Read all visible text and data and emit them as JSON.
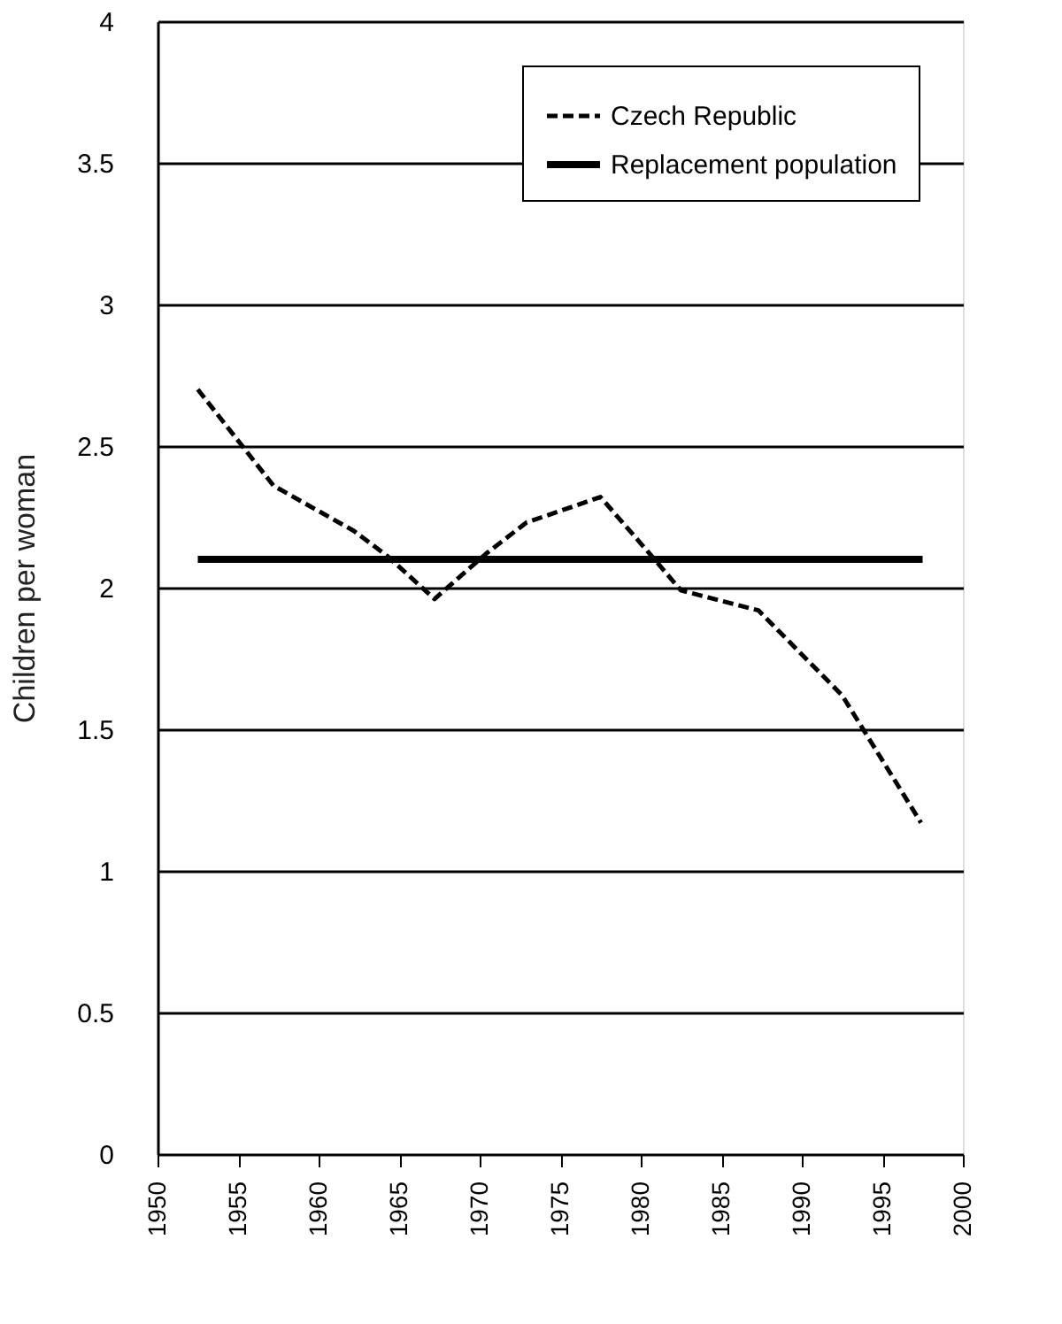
{
  "chart_data": {
    "type": "line",
    "ylabel": "Children per woman",
    "series": [
      {
        "name": "Czech Republic",
        "color": "#000000",
        "line_style": "dashed",
        "x": [
          1952.5,
          1957.2,
          1962.2,
          1964.3,
          1967.2,
          1970.4,
          1972.9,
          1977.5,
          1980.4,
          1982.5,
          1987.3,
          1992.5,
          1997.4
        ],
        "values": [
          2.7,
          2.36,
          2.2,
          2.11,
          1.96,
          2.12,
          2.23,
          2.32,
          2.13,
          1.99,
          1.92,
          1.62,
          1.17
        ]
      },
      {
        "name": "Replacement population",
        "color": "#000000",
        "line_style": "solid",
        "x": [
          1952.5,
          1997.5
        ],
        "values": [
          2.1,
          2.1
        ]
      }
    ],
    "xlim": [
      1950,
      2000
    ],
    "xticks": [
      1950,
      1955,
      1960,
      1965,
      1970,
      1975,
      1980,
      1985,
      1990,
      1995,
      2000
    ],
    "ylim": [
      0,
      4
    ],
    "yticks": [
      0,
      0.5,
      1,
      1.5,
      2,
      2.5,
      3,
      3.5,
      4
    ],
    "grid": "y",
    "legend": "top right",
    "marker": "none"
  }
}
